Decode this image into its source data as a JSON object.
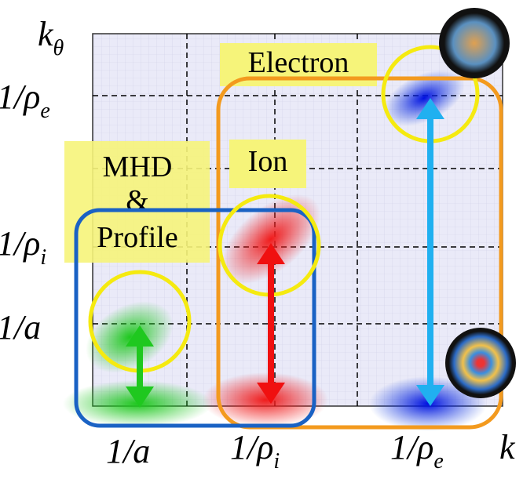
{
  "axes": {
    "y_label": {
      "text": "k",
      "sub": "θ"
    },
    "x_label": {
      "text": "k"
    },
    "y_ticks": [
      {
        "text": "1/ρ",
        "sub": "e"
      },
      {
        "text": "1/ρ",
        "sub": "i"
      },
      {
        "text": "1/a"
      }
    ],
    "x_ticks": [
      {
        "text": "1/a"
      },
      {
        "text": "1/ρ",
        "sub": "i"
      },
      {
        "text": "1/ρ",
        "sub": "e"
      }
    ]
  },
  "regions": {
    "electron": "Electron",
    "ion": "Ion",
    "mhd": [
      "MHD",
      "&",
      "Profile"
    ]
  }
}
